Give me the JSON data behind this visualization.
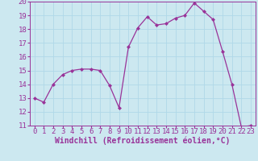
{
  "hours": [
    0,
    1,
    2,
    3,
    4,
    5,
    6,
    7,
    8,
    9,
    10,
    11,
    12,
    13,
    14,
    15,
    16,
    17,
    18,
    19,
    20,
    21,
    22,
    23
  ],
  "values": [
    13.0,
    12.7,
    14.0,
    14.7,
    15.0,
    15.1,
    15.1,
    15.0,
    13.9,
    12.3,
    16.7,
    18.1,
    18.9,
    18.3,
    18.4,
    18.8,
    19.0,
    19.9,
    19.3,
    18.7,
    16.4,
    14.0,
    10.9,
    11.0
  ],
  "line_color": "#993399",
  "marker": "D",
  "marker_size": 2.0,
  "xlabel": "Windchill (Refroidissement éolien,°C)",
  "ylim": [
    11,
    20
  ],
  "yticks": [
    11,
    12,
    13,
    14,
    15,
    16,
    17,
    18,
    19,
    20
  ],
  "xticks": [
    0,
    1,
    2,
    3,
    4,
    5,
    6,
    7,
    8,
    9,
    10,
    11,
    12,
    13,
    14,
    15,
    16,
    17,
    18,
    19,
    20,
    21,
    22,
    23
  ],
  "bg_color": "#cce8f0",
  "grid_color": "#b0d8e8",
  "tick_label_fontsize": 6.5,
  "xlabel_fontsize": 7.0
}
